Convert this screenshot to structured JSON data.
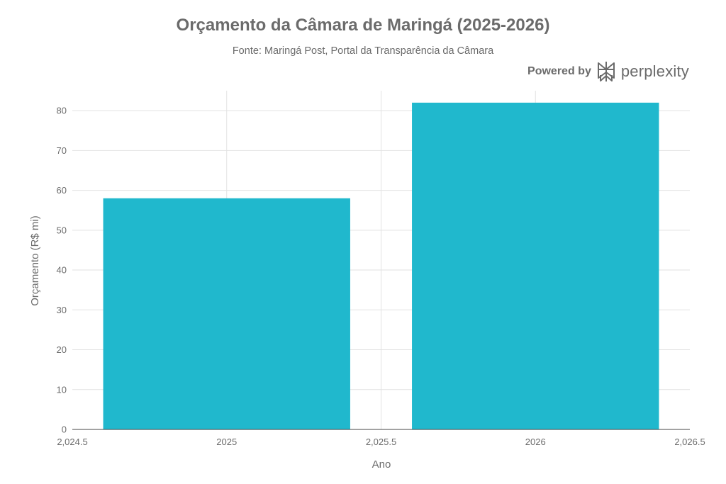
{
  "chart_data": {
    "type": "bar",
    "title": "Orçamento da Câmara de Maringá (2025-2026)",
    "subtitle": "Fonte: Maringá Post, Portal da Transparência da Câmara",
    "xlabel": "Ano",
    "ylabel": "Orçamento (R$ mi)",
    "x": [
      2025,
      2026
    ],
    "values": [
      58,
      82
    ],
    "xlim": [
      2024.5,
      2026.5
    ],
    "ylim": [
      0,
      85
    ],
    "x_ticks": [
      2024.5,
      2025,
      2025.5,
      2026,
      2026.5
    ],
    "x_tick_labels": [
      "2,024.5",
      "2025",
      "2,025.5",
      "2026",
      "2,026.5"
    ],
    "y_ticks": [
      0,
      10,
      20,
      30,
      40,
      50,
      60,
      70,
      80
    ],
    "bar_width": 0.8,
    "grid": true,
    "bar_color": "#20B8CD"
  },
  "branding": {
    "powered_by": "Powered by",
    "name": "perplexity"
  },
  "colors": {
    "text": "#6b6b6b",
    "grid": "#e2e2e2",
    "axis": "#444444"
  }
}
